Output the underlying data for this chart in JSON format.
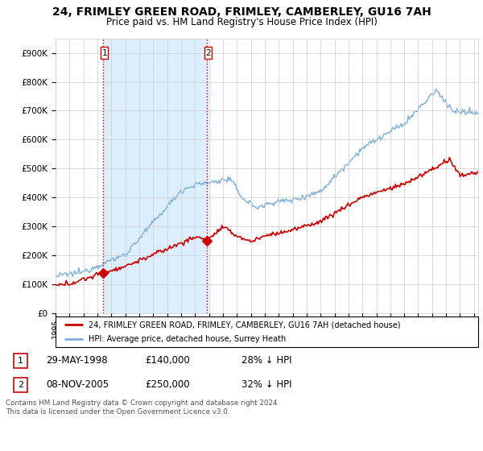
{
  "title": "24, FRIMLEY GREEN ROAD, FRIMLEY, CAMBERLEY, GU16 7AH",
  "subtitle": "Price paid vs. HM Land Registry's House Price Index (HPI)",
  "legend_red": "24, FRIMLEY GREEN ROAD, FRIMLEY, CAMBERLEY, GU16 7AH (detached house)",
  "legend_blue": "HPI: Average price, detached house, Surrey Heath",
  "annotation1_date": "29-MAY-1998",
  "annotation1_price": "£140,000",
  "annotation1_hpi": "28% ↓ HPI",
  "annotation2_date": "08-NOV-2005",
  "annotation2_price": "£250,000",
  "annotation2_hpi": "32% ↓ HPI",
  "footer": "Contains HM Land Registry data © Crown copyright and database right 2024.\nThis data is licensed under the Open Government Licence v3.0.",
  "red_color": "#cc0000",
  "blue_color": "#7aaedb",
  "vline_color": "#cc0000",
  "shade_color": "#ddeeff",
  "grid_color": "#cccccc",
  "background_color": "#ffffff",
  "ylim": [
    0,
    950000
  ],
  "yticks": [
    0,
    100000,
    200000,
    300000,
    400000,
    500000,
    600000,
    700000,
    800000,
    900000
  ],
  "sale1_x": 1998.42,
  "sale2_x": 2005.85,
  "sale1_y": 140000,
  "sale2_y": 250000,
  "xlim_start": 1995,
  "xlim_end": 2025.3
}
